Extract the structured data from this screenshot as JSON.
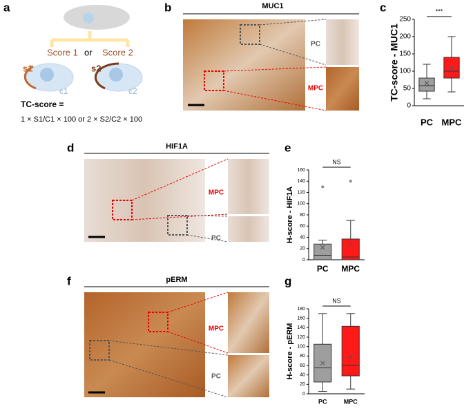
{
  "panel_labels": [
    "a",
    "b",
    "c",
    "d",
    "e",
    "f",
    "g"
  ],
  "panel_a": {
    "score1": "Score 1",
    "or": "or",
    "score2": "Score 2",
    "s1": "s1",
    "c1": "c1",
    "s2": "s2",
    "c2": "c2",
    "formula_title": "TC-score =",
    "formula": "1 × S1/C1 × 100  or  2 × S2/C2 × 100"
  },
  "panel_b": {
    "title": "MUC1",
    "inset_top": "PC",
    "inset_bottom": "MPC"
  },
  "panel_d": {
    "title": "HIF1A",
    "inset_top": "MPC",
    "inset_bottom": "PC"
  },
  "panel_f": {
    "title": "pERM",
    "inset_top": "MPC",
    "inset_bottom": "PC"
  },
  "chart_data": [
    {
      "type": "box",
      "ylabel": "TC-score - MUC1",
      "annotation": "***",
      "categories": [
        "PC",
        "MPC"
      ],
      "boxes": [
        {
          "color": "#9e9e9e",
          "min": 20,
          "q1": 42,
          "median": 58,
          "q3": 80,
          "max": 120,
          "mean": 65,
          "outliers": []
        },
        {
          "color": "#ff1a1a",
          "min": 40,
          "q1": 80,
          "median": 100,
          "q3": 140,
          "max": 200,
          "mean": 110,
          "outliers": []
        }
      ],
      "ylim": [
        0,
        250
      ],
      "yticks": [
        0,
        50,
        100,
        150,
        200,
        250
      ]
    },
    {
      "type": "box",
      "ylabel": "H-score - HIF1A",
      "annotation": "NS",
      "categories": [
        "PC",
        "MPC"
      ],
      "boxes": [
        {
          "color": "#9e9e9e",
          "min": 0,
          "q1": 0,
          "median": 8,
          "q3": 28,
          "max": 35,
          "mean": 22,
          "outliers": [
            130
          ]
        },
        {
          "color": "#ff1a1a",
          "min": 0,
          "q1": 0,
          "median": 5,
          "q3": 37,
          "max": 70,
          "mean": 27,
          "outliers": [
            140
          ]
        }
      ],
      "ylim": [
        0,
        160
      ],
      "yticks": [
        0,
        20,
        40,
        60,
        80,
        100,
        120,
        140,
        160
      ]
    },
    {
      "type": "box",
      "ylabel": "H-score - pERM",
      "annotation": "NS",
      "categories": [
        "PC",
        "MPC"
      ],
      "boxes": [
        {
          "color": "#9e9e9e",
          "min": 5,
          "q1": 25,
          "median": 55,
          "q3": 105,
          "max": 170,
          "mean": 65,
          "outliers": []
        },
        {
          "color": "#ff1a1a",
          "min": 10,
          "q1": 38,
          "median": 60,
          "q3": 143,
          "max": 170,
          "mean": 78,
          "outliers": []
        }
      ],
      "ylim": [
        0,
        180
      ],
      "yticks": [
        0,
        20,
        40,
        60,
        80,
        100,
        120,
        140,
        160,
        180
      ]
    }
  ]
}
